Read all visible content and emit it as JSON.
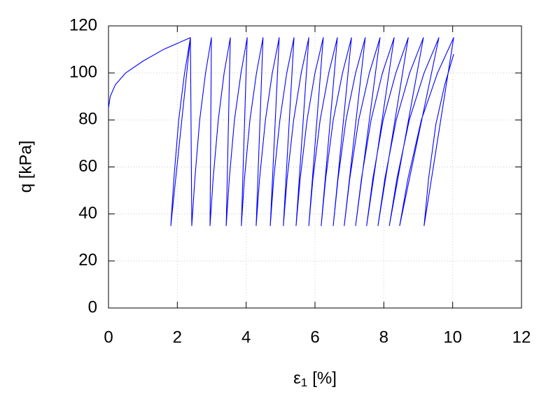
{
  "chart_data": {
    "type": "line",
    "x_label": {
      "symbol": "ε",
      "subscript": "1",
      "unit": "[%]"
    },
    "y_label": "q [kPa]",
    "xlim": [
      0,
      12
    ],
    "xticks": [
      0,
      2,
      4,
      6,
      8,
      10,
      12
    ],
    "ylim": [
      0,
      120
    ],
    "yticks": [
      0,
      20,
      40,
      60,
      80,
      100,
      120
    ],
    "grid": true,
    "series": [
      {
        "color": "#0000ff",
        "x": [
          0,
          0.05,
          0.2,
          0.5,
          1.0,
          1.6,
          2.38,
          1.81,
          1.9,
          2.04,
          2.21,
          2.38,
          2.42,
          2.51,
          2.65,
          2.82,
          2.99,
          2.95,
          3.04,
          3.19,
          3.36,
          3.54,
          3.42,
          3.51,
          3.66,
          3.85,
          4.03,
          3.86,
          3.95,
          4.11,
          4.3,
          4.49,
          4.29,
          4.39,
          4.56,
          4.76,
          4.96,
          4.7,
          4.8,
          4.98,
          5.18,
          5.39,
          5.08,
          5.19,
          5.38,
          5.6,
          5.82,
          5.45,
          5.57,
          5.77,
          6.0,
          6.24,
          5.82,
          5.94,
          6.15,
          6.4,
          6.65,
          6.18,
          6.31,
          6.53,
          6.8,
          7.06,
          6.53,
          6.67,
          6.9,
          7.18,
          7.46,
          6.85,
          7.01,
          7.27,
          7.58,
          7.89,
          7.18,
          7.35,
          7.63,
          7.96,
          8.3,
          7.5,
          7.68,
          7.98,
          8.35,
          8.71,
          7.83,
          8.03,
          8.36,
          8.75,
          9.15,
          8.16,
          8.38,
          8.74,
          9.17,
          9.6,
          8.46,
          8.7,
          9.09,
          9.56,
          10.03,
          9.17,
          9.3,
          9.51,
          9.77,
          10.03
        ],
        "values": [
          85,
          90,
          95,
          100,
          105,
          110,
          115,
          35,
          55,
          80,
          100,
          115,
          35,
          55,
          80,
          100,
          115,
          35,
          55,
          80,
          100,
          115,
          35,
          55,
          80,
          100,
          115,
          35,
          55,
          80,
          100,
          115,
          35,
          55,
          80,
          100,
          115,
          35,
          55,
          80,
          100,
          115,
          35,
          55,
          80,
          100,
          115,
          35,
          55,
          80,
          100,
          115,
          35,
          55,
          80,
          100,
          115,
          35,
          55,
          80,
          100,
          115,
          35,
          55,
          80,
          100,
          115,
          35,
          55,
          80,
          100,
          115,
          35,
          55,
          80,
          100,
          115,
          35,
          55,
          80,
          100,
          115,
          35,
          55,
          80,
          100,
          115,
          35,
          55,
          80,
          100,
          115,
          35,
          55,
          80,
          100,
          115,
          35,
          55,
          78,
          95,
          108
        ]
      }
    ]
  }
}
